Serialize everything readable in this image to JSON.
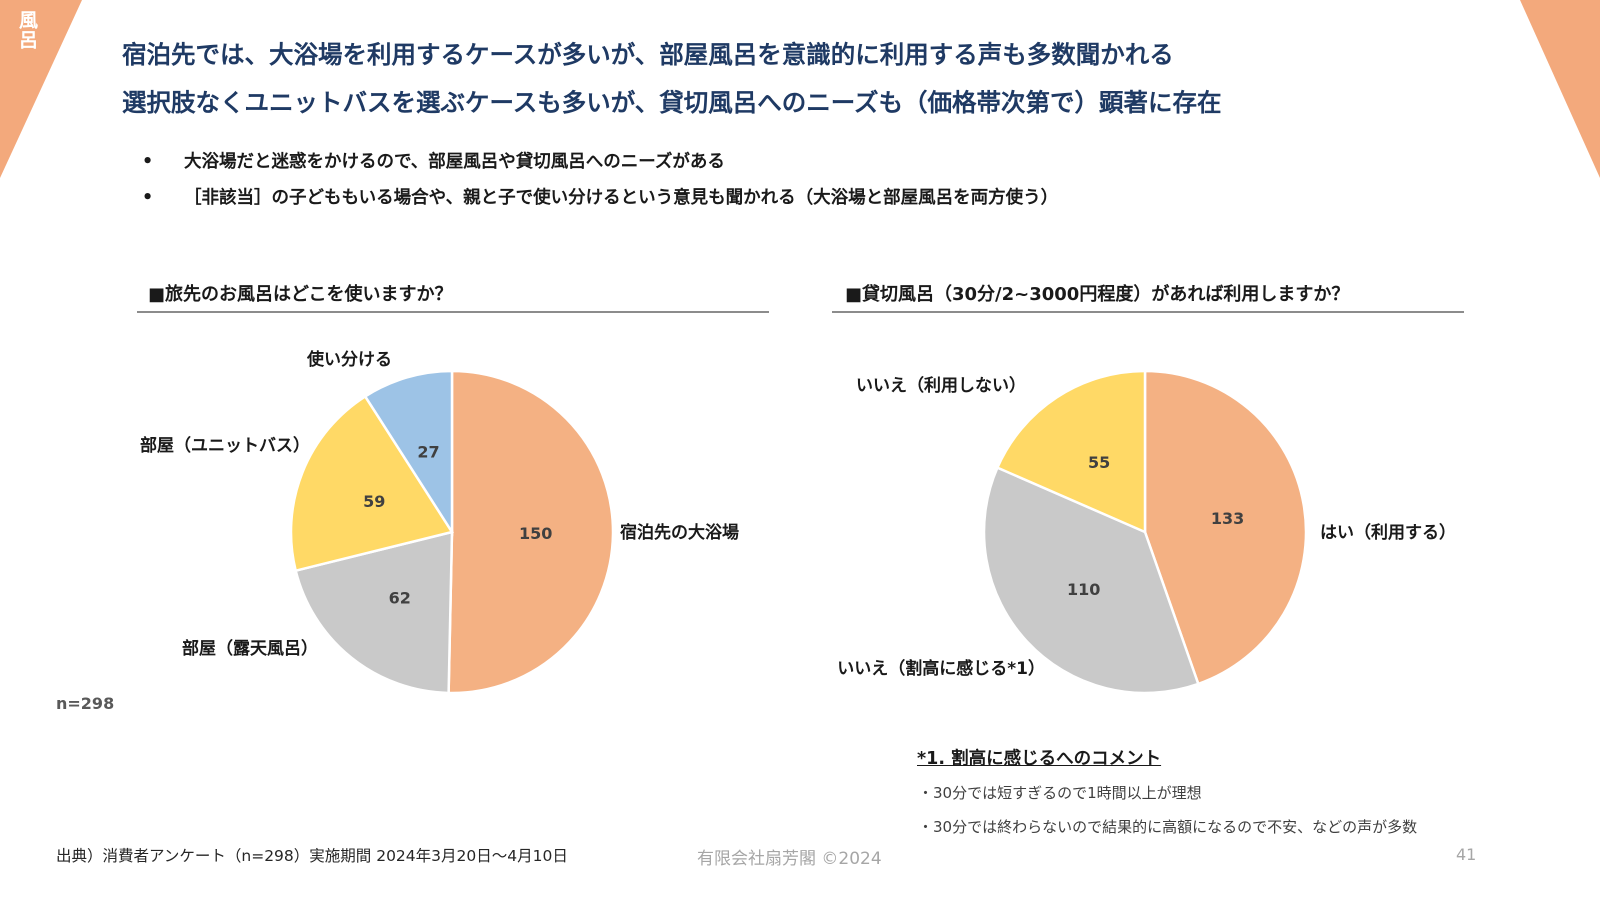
{
  "section_tag": "風呂",
  "headline": {
    "line1": "宿泊先では、大浴場を利用するケースが多いが、部屋風呂を意識的に利用する声も多数聞かれる",
    "line2": "選択肢なくユニットバスを選ぶケースも多いが、貸切風呂へのニーズも（価格帯次第で）顕著に存在"
  },
  "bullets": [
    {
      "marker": "•",
      "text": "大浴場だと迷惑をかけるので、部屋風呂や貸切風呂へのニーズがある"
    },
    {
      "marker": "•",
      "text": "［非該当］の子どももいる場合や、親と子で使い分けるという意見も聞かれる（大浴場と部屋風呂を両方使う）"
    }
  ],
  "colors": {
    "accent_corner": "#f3a97c",
    "headline": "#1f3a64",
    "orange": "#f4b183",
    "gray": "#c9c9c9",
    "yellow": "#ffd966",
    "blue": "#9dc3e6"
  },
  "chart_data": [
    {
      "type": "pie",
      "title": "■旅先のお風呂はどこを使いますか？",
      "slices": [
        {
          "label": "宿泊先の大浴場",
          "value": 150,
          "color": "#f4b183"
        },
        {
          "label": "部屋（露天風呂）",
          "value": 62,
          "color": "#c9c9c9"
        },
        {
          "label": "部屋（ユニットバス）",
          "value": 59,
          "color": "#ffd966"
        },
        {
          "label": "使い分ける",
          "value": 27,
          "color": "#9dc3e6"
        }
      ],
      "n_label": "n=298"
    },
    {
      "type": "pie",
      "title": "■貸切風呂（30分/2~3000円程度）があれば利用しますか？",
      "slices": [
        {
          "label": "はい（利用する）",
          "value": 133,
          "color": "#f4b183"
        },
        {
          "label": "いいえ（割高に感じる*1）",
          "value": 110,
          "color": "#c9c9c9"
        },
        {
          "label": "いいえ（利用しない）",
          "value": 55,
          "color": "#ffd966"
        }
      ]
    }
  ],
  "note": {
    "title": "*1. 割高に感じるへのコメント",
    "lines": [
      "・30分では短すぎるので1時間以上が理想",
      "・30分では終わらないので結果的に高額になるので不安、などの声が多数"
    ]
  },
  "footer": {
    "source": "出典）消費者アンケート（n=298）実施期間 2024年3月20日～4月10日",
    "copyright": "有限会社扇芳閣 ©2024",
    "page_number": "41"
  }
}
